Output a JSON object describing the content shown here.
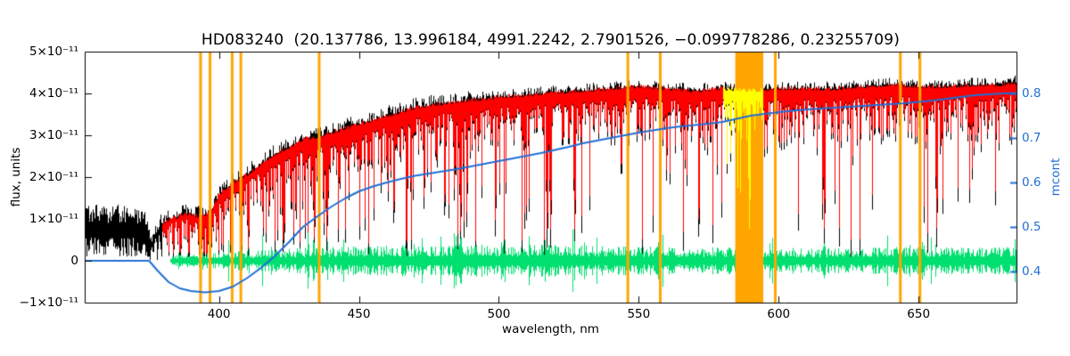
{
  "title": "HD083240  (20.137786, 13.996184, 4991.2242, 2.7901526, −0.099778286, 0.23255709)",
  "axes": {
    "x": {
      "label": "wavelength, nm",
      "tick_labels": [
        "400",
        "450",
        "500",
        "550",
        "600",
        "650"
      ],
      "tick_values": [
        400,
        450,
        500,
        550,
        600,
        650
      ],
      "range_nm": [
        352,
        685
      ]
    },
    "y_left": {
      "label": "flux, units",
      "tick_labels": [
        "5×10⁻¹¹",
        "4×10⁻¹¹",
        "3×10⁻¹¹",
        "2×10⁻¹¹",
        "1×10⁻¹¹",
        "0",
        "−1×10⁻¹¹"
      ],
      "tick_values_1e11": [
        5,
        4,
        3,
        2,
        1,
        0,
        -1
      ],
      "range_1e11": [
        -1,
        5
      ]
    },
    "y_right": {
      "label": "mcont",
      "tick_labels": [
        "0.8",
        "0.7",
        "0.6",
        "0.5",
        "0.4"
      ],
      "tick_values": [
        0.8,
        0.7,
        0.6,
        0.5,
        0.4
      ],
      "range": [
        0.33,
        0.894
      ]
    }
  },
  "colors": {
    "background": "#ffffff",
    "axis": "#000000",
    "observed": "#000000",
    "model": "#ff0000",
    "residual": "#00df6f",
    "mcont": "#1f6fd4",
    "marker": "#ffa500",
    "highlight": "#ffff00"
  },
  "chart_data": {
    "type": "line",
    "title": "HD083240  (20.137786, 13.996184, 4991.2242, 2.7901526, −0.099778286, 0.23255709)",
    "xlabel": "wavelength, nm",
    "ylabel_left": "flux, units",
    "ylabel_right": "mcont",
    "xlim_nm": [
      352,
      685
    ],
    "ylim_left_1e11": [
      -1,
      5
    ],
    "ylim_right": [
      0.33,
      0.894
    ],
    "grid": false,
    "legend": "none",
    "series": [
      {
        "name": "observed-spectrum",
        "color": "#000000",
        "kind": "noisy-spectrum",
        "note": "black observed stellar spectrum; only series present below 379 nm; noisy block 352-374 nm around 0.85e-11",
        "continuum_1e11": [
          [
            352,
            0.85
          ],
          [
            362,
            0.85
          ],
          [
            370,
            0.85
          ],
          [
            374,
            0.75
          ],
          [
            375.5,
            0.35
          ],
          [
            377,
            0.55
          ],
          [
            379,
            0.8
          ],
          [
            383,
            0.95
          ],
          [
            388,
            1.05
          ],
          [
            393,
            1.0
          ],
          [
            397,
            1.1
          ],
          [
            400,
            1.55
          ],
          [
            405,
            1.8
          ],
          [
            410,
            2.0
          ],
          [
            415,
            2.25
          ],
          [
            420,
            2.5
          ],
          [
            425,
            2.65
          ],
          [
            430,
            2.85
          ],
          [
            436,
            2.9
          ],
          [
            440,
            3.0
          ],
          [
            445,
            3.1
          ],
          [
            450,
            3.2
          ],
          [
            460,
            3.4
          ],
          [
            470,
            3.6
          ],
          [
            480,
            3.7
          ],
          [
            490,
            3.78
          ],
          [
            500,
            3.85
          ],
          [
            510,
            3.9
          ],
          [
            520,
            3.95
          ],
          [
            530,
            4.0
          ],
          [
            540,
            4.05
          ],
          [
            550,
            4.1
          ],
          [
            560,
            4.05
          ],
          [
            570,
            4.0
          ],
          [
            580,
            4.05
          ],
          [
            590,
            4.0
          ],
          [
            600,
            4.05
          ],
          [
            610,
            4.05
          ],
          [
            620,
            4.05
          ],
          [
            630,
            4.1
          ],
          [
            640,
            4.15
          ],
          [
            650,
            4.1
          ],
          [
            660,
            4.1
          ],
          [
            672,
            4.15
          ],
          [
            680,
            4.15
          ],
          [
            685,
            4.2
          ]
        ]
      },
      {
        "name": "model-spectrum",
        "color": "#ff0000",
        "kind": "noisy-spectrum-overlay",
        "note": "red fitted spectrum overlaid on black from 379.5 nm to right edge",
        "start_nm": 379.5
      },
      {
        "name": "residuals",
        "color": "#00df6f",
        "kind": "residual-band",
        "note": "green residual scatter centered on zero flux",
        "center_1e11": 0,
        "start_nm": 382.5,
        "amplitude_1e11": [
          [
            385,
            0.12
          ],
          [
            400,
            0.18
          ],
          [
            420,
            0.26
          ],
          [
            440,
            0.3
          ],
          [
            460,
            0.33
          ],
          [
            480,
            0.35
          ],
          [
            500,
            0.35
          ],
          [
            520,
            0.35
          ],
          [
            540,
            0.33
          ],
          [
            560,
            0.3
          ],
          [
            580,
            0.3
          ],
          [
            600,
            0.28
          ],
          [
            620,
            0.28
          ],
          [
            640,
            0.3
          ],
          [
            660,
            0.3
          ],
          [
            685,
            0.3
          ]
        ]
      },
      {
        "name": "mcont-curve",
        "color": "#1f6fd4",
        "axis": "right",
        "kind": "smooth-line",
        "note": "blue smooth continuum-ratio curve, read on right axis; flat at left then dips near 395 nm and rises to 0.8",
        "points": [
          [
            352,
            0.424
          ],
          [
            375,
            0.424
          ],
          [
            378,
            0.402
          ],
          [
            382,
            0.376
          ],
          [
            386,
            0.362
          ],
          [
            390,
            0.356
          ],
          [
            395,
            0.353
          ],
          [
            400,
            0.356
          ],
          [
            405,
            0.366
          ],
          [
            410,
            0.385
          ],
          [
            415,
            0.408
          ],
          [
            420,
            0.435
          ],
          [
            425,
            0.466
          ],
          [
            430,
            0.5
          ],
          [
            435,
            0.523
          ],
          [
            440,
            0.545
          ],
          [
            445,
            0.564
          ],
          [
            450,
            0.58
          ],
          [
            455,
            0.591
          ],
          [
            460,
            0.6
          ],
          [
            465,
            0.608
          ],
          [
            470,
            0.615
          ],
          [
            475,
            0.62
          ],
          [
            480,
            0.625
          ],
          [
            485,
            0.63
          ],
          [
            490,
            0.636
          ],
          [
            495,
            0.642
          ],
          [
            500,
            0.648
          ],
          [
            505,
            0.654
          ],
          [
            510,
            0.66
          ],
          [
            515,
            0.666
          ],
          [
            520,
            0.673
          ],
          [
            525,
            0.68
          ],
          [
            530,
            0.688
          ],
          [
            535,
            0.694
          ],
          [
            540,
            0.7
          ],
          [
            545,
            0.706
          ],
          [
            550,
            0.712
          ],
          [
            555,
            0.717
          ],
          [
            560,
            0.722
          ],
          [
            565,
            0.726
          ],
          [
            570,
            0.729
          ],
          [
            575,
            0.732
          ],
          [
            580,
            0.736
          ],
          [
            585,
            0.743
          ],
          [
            590,
            0.75
          ],
          [
            595,
            0.754
          ],
          [
            600,
            0.758
          ],
          [
            605,
            0.761
          ],
          [
            610,
            0.764
          ],
          [
            615,
            0.766
          ],
          [
            620,
            0.768
          ],
          [
            625,
            0.77
          ],
          [
            630,
            0.772
          ],
          [
            635,
            0.774
          ],
          [
            640,
            0.776
          ],
          [
            645,
            0.778
          ],
          [
            650,
            0.781
          ],
          [
            655,
            0.784
          ],
          [
            660,
            0.788
          ],
          [
            665,
            0.792
          ],
          [
            670,
            0.796
          ],
          [
            675,
            0.798
          ],
          [
            680,
            0.8
          ],
          [
            685,
            0.801
          ]
        ]
      },
      {
        "name": "highlight-segment",
        "color": "#ffff00",
        "kind": "spectrum-recolor",
        "note": "spectrum drawn in yellow across the orange contamination band",
        "range_nm": [
          580,
          594.5
        ]
      }
    ],
    "markers": {
      "color": "#ffa500",
      "note": "orange full-height vertical reference lines and one wide band",
      "vertical_lines_nm": [
        393.4,
        396.8,
        404.7,
        407.8,
        435.8,
        546.1,
        557.7,
        598.8,
        643.5,
        650.5
      ],
      "band_nm": [
        584.5,
        594.5
      ]
    },
    "strong_absorption_lines_nm": [
      383.5,
      386.1,
      388.9,
      393.4,
      396.8,
      410.2,
      422.7,
      434.0,
      438.3,
      486.1,
      517.0,
      518.4,
      527.0,
      589.3,
      616.2,
      656.3
    ]
  }
}
